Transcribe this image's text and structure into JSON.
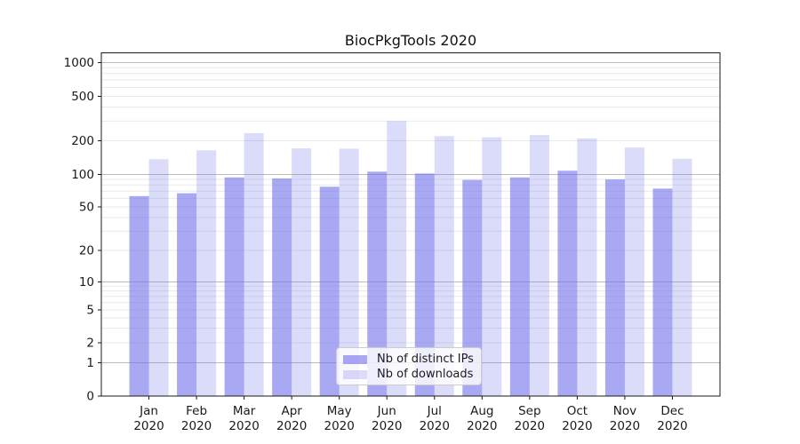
{
  "chart_data": {
    "type": "bar",
    "title": "BiocPkgTools 2020",
    "xlabel": "",
    "ylabel": "",
    "yscale": "pseudo-log (symlog)",
    "ylim": [
      0,
      1230
    ],
    "yticks": [
      0,
      1,
      2,
      5,
      10,
      20,
      50,
      100,
      200,
      500,
      1000
    ],
    "grid": "horizontal, major and minor, on",
    "legend_position": "lower-center",
    "categories": [
      "Jan 2020",
      "Feb 2020",
      "Mar 2020",
      "Apr 2020",
      "May 2020",
      "Jun 2020",
      "Jul 2020",
      "Aug 2020",
      "Sep 2020",
      "Oct 2020",
      "Nov 2020",
      "Dec 2020"
    ],
    "x_tick_month_line": [
      "Jan",
      "Feb",
      "Mar",
      "Apr",
      "May",
      "Jun",
      "Jul",
      "Aug",
      "Sep",
      "Oct",
      "Nov",
      "Dec"
    ],
    "x_tick_year_line": "2020",
    "series": [
      {
        "name": "Nb of distinct IPs",
        "color": "rgba(110,110,235,0.6)",
        "values": [
          63,
          67,
          94,
          92,
          77,
          106,
          102,
          89,
          94,
          108,
          90,
          74
        ]
      },
      {
        "name": "Nb of downloads",
        "color": "rgba(110,110,235,0.25)",
        "values": [
          137,
          164,
          234,
          171,
          170,
          300,
          220,
          215,
          225,
          210,
          174,
          138
        ]
      }
    ],
    "colors": {
      "spine": "#1a1a1a",
      "major_grid": "#bbbbbb",
      "minor_grid": "#e9e9e9",
      "tick_text": "#1a1a1a"
    }
  }
}
